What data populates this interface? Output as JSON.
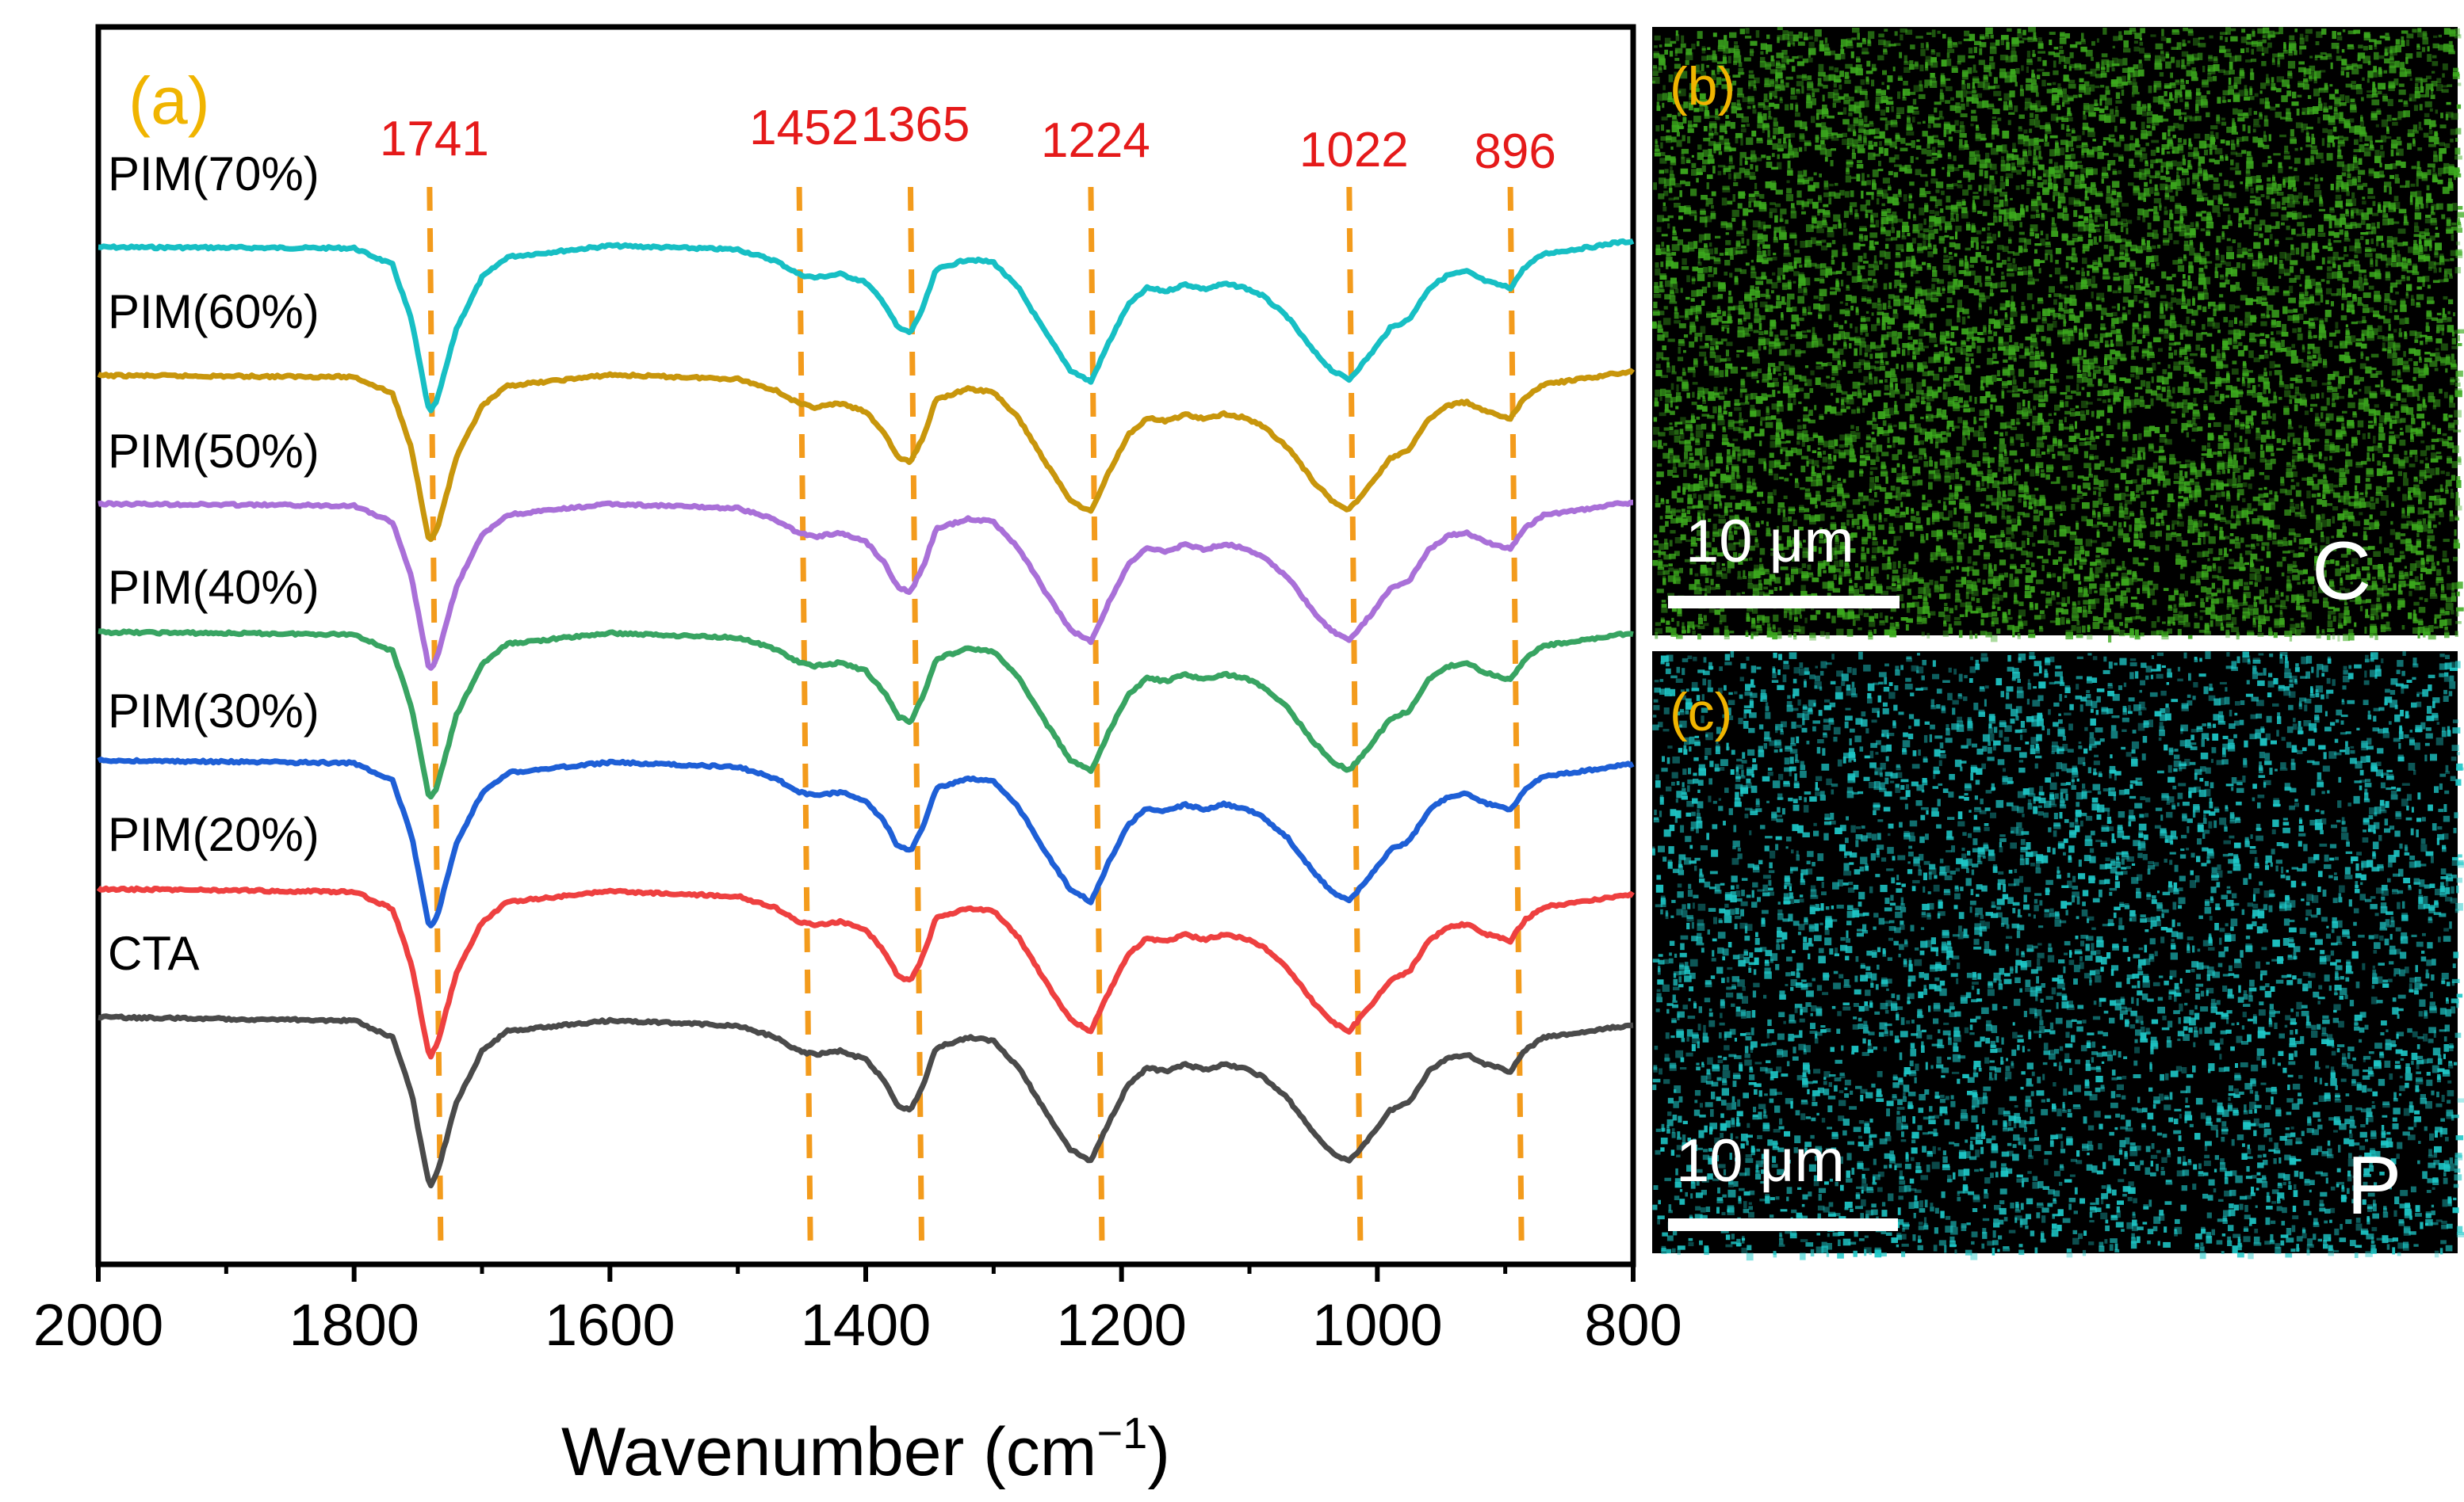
{
  "chart_data": {
    "type": "line",
    "panel_label": "(a)",
    "xlabel": "Wavenumber (cm",
    "xlabel_sup": "−1",
    "xlabel_end": ")",
    "ylabel": "",
    "xlim": [
      2000,
      800
    ],
    "x_ticks": [
      2000,
      1800,
      1600,
      1400,
      1200,
      1000,
      800
    ],
    "x_tick_labels": [
      "2000",
      "1800",
      "1600",
      "1400",
      "1200",
      "1000",
      "800"
    ],
    "y_axis": "offset transmittance (arbitrary units, no ticks)",
    "grid": false,
    "peak_markers": [
      {
        "label": "1741",
        "x": 1741
      },
      {
        "label": "1452",
        "x": 1452
      },
      {
        "label": "1365",
        "x": 1365
      },
      {
        "label": "1224",
        "x": 1224
      },
      {
        "label": "1022",
        "x": 1022
      },
      {
        "label": "896",
        "x": 896
      }
    ],
    "series": [
      {
        "name": "PIM(70%)",
        "color": "#17bfc4",
        "offset": 6
      },
      {
        "name": "PIM(60%)",
        "color": "#c8960c",
        "offset": 5
      },
      {
        "name": "PIM(50%)",
        "color": "#a970d8",
        "offset": 4
      },
      {
        "name": "PIM(40%)",
        "color": "#38a462",
        "offset": 3
      },
      {
        "name": "PIM(30%)",
        "color": "#1e5fd6",
        "offset": 2
      },
      {
        "name": "PIM(20%)",
        "color": "#ee4040",
        "offset": 1
      },
      {
        "name": "CTA",
        "color": "#4a4a4a",
        "offset": 0
      }
    ],
    "spectrum_profile": {
      "x": [
        2000,
        1900,
        1800,
        1770,
        1755,
        1745,
        1741,
        1735,
        1720,
        1700,
        1680,
        1600,
        1500,
        1470,
        1452,
        1440,
        1420,
        1400,
        1385,
        1375,
        1365,
        1355,
        1345,
        1320,
        1300,
        1280,
        1260,
        1240,
        1224,
        1210,
        1195,
        1180,
        1165,
        1150,
        1135,
        1120,
        1105,
        1090,
        1070,
        1050,
        1035,
        1022,
        1005,
        990,
        975,
        960,
        945,
        930,
        915,
        905,
        896,
        885,
        870,
        850,
        830,
        815,
        800
      ],
      "depth": [
        0,
        0.01,
        0.02,
        0.12,
        0.45,
        0.85,
        1.0,
        0.92,
        0.5,
        0.2,
        0.08,
        0.02,
        0.05,
        0.12,
        0.2,
        0.22,
        0.2,
        0.25,
        0.38,
        0.52,
        0.55,
        0.4,
        0.18,
        0.12,
        0.14,
        0.3,
        0.55,
        0.78,
        0.85,
        0.62,
        0.4,
        0.3,
        0.32,
        0.28,
        0.31,
        0.28,
        0.3,
        0.35,
        0.48,
        0.68,
        0.8,
        0.85,
        0.7,
        0.55,
        0.5,
        0.32,
        0.24,
        0.22,
        0.28,
        0.3,
        0.32,
        0.2,
        0.12,
        0.1,
        0.08,
        0.06,
        0.05
      ]
    }
  },
  "panel_b": {
    "label": "(b)",
    "element": "C",
    "scale_text": "10 μm",
    "color": "#3caa1e"
  },
  "panel_c": {
    "label": "(c)",
    "element": "P",
    "scale_text": "10 μm",
    "color": "#1ec8c8"
  }
}
